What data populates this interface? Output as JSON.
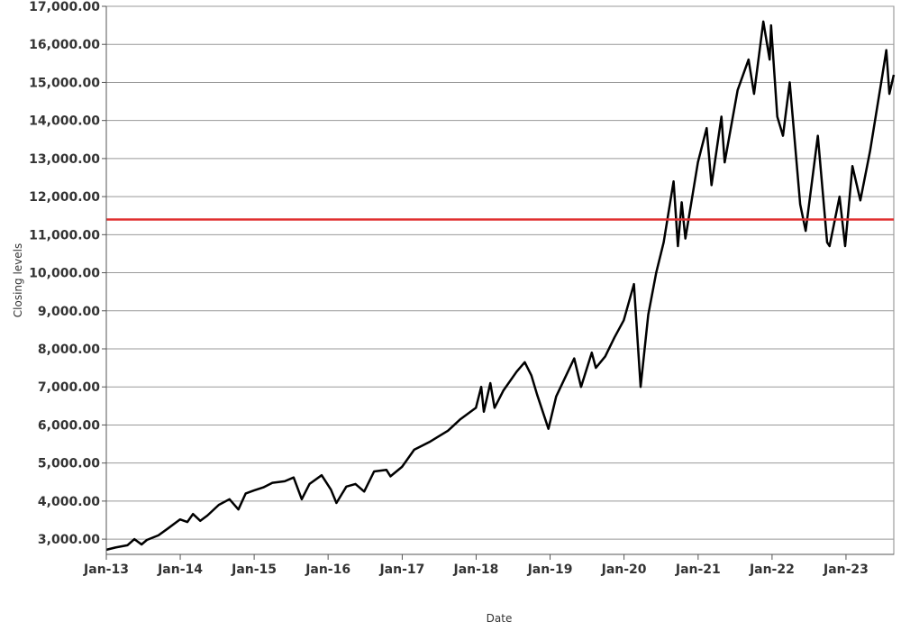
{
  "chart_data": {
    "type": "line",
    "title": "",
    "xlabel": "Date",
    "ylabel": "Closing levels",
    "xlim": [
      "2013-01-01",
      "2023-08-25"
    ],
    "ylim": [
      2600,
      17000
    ],
    "y_ticks": [
      3000,
      4000,
      5000,
      6000,
      7000,
      8000,
      9000,
      10000,
      11000,
      12000,
      13000,
      14000,
      15000,
      16000,
      17000
    ],
    "y_tick_labels": [
      "3,000.00",
      "4,000.00",
      "5,000.00",
      "6,000.00",
      "7,000.00",
      "8,000.00",
      "9,000.00",
      "10,000.00",
      "11,000.00",
      "12,000.00",
      "13,000.00",
      "14,000.00",
      "15,000.00",
      "16,000.00",
      "17,000.00"
    ],
    "x_ticks": [
      "2013-01-01",
      "2014-01-01",
      "2015-01-01",
      "2016-01-01",
      "2017-01-01",
      "2018-01-01",
      "2019-01-01",
      "2020-01-01",
      "2021-01-01",
      "2022-01-01",
      "2023-01-01"
    ],
    "x_tick_labels": [
      "Jan-13",
      "Jan-14",
      "Jan-15",
      "Jan-16",
      "Jan-17",
      "Jan-18",
      "Jan-19",
      "Jan-20",
      "Jan-21",
      "Jan-22",
      "Jan-23"
    ],
    "grid": "horizontal",
    "reference_line": {
      "y": 11400,
      "color": "#e03030"
    },
    "series": [
      {
        "color": "#000000",
        "points": [
          [
            "2013-01-01",
            2720
          ],
          [
            "2013-02-15",
            2780
          ],
          [
            "2013-04-15",
            2840
          ],
          [
            "2013-05-20",
            3000
          ],
          [
            "2013-06-24",
            2860
          ],
          [
            "2013-07-20",
            2980
          ],
          [
            "2013-09-15",
            3100
          ],
          [
            "2013-11-01",
            3280
          ],
          [
            "2013-12-31",
            3520
          ],
          [
            "2014-02-05",
            3450
          ],
          [
            "2014-03-05",
            3660
          ],
          [
            "2014-04-10",
            3480
          ],
          [
            "2014-05-15",
            3620
          ],
          [
            "2014-07-10",
            3900
          ],
          [
            "2014-09-01",
            4050
          ],
          [
            "2014-10-15",
            3780
          ],
          [
            "2014-11-20",
            4200
          ],
          [
            "2014-12-31",
            4280
          ],
          [
            "2015-02-15",
            4360
          ],
          [
            "2015-04-01",
            4480
          ],
          [
            "2015-06-01",
            4520
          ],
          [
            "2015-07-15",
            4620
          ],
          [
            "2015-08-24",
            4050
          ],
          [
            "2015-10-01",
            4450
          ],
          [
            "2015-11-30",
            4680
          ],
          [
            "2016-01-15",
            4300
          ],
          [
            "2016-02-11",
            3950
          ],
          [
            "2016-03-31",
            4380
          ],
          [
            "2016-05-15",
            4450
          ],
          [
            "2016-06-27",
            4250
          ],
          [
            "2016-08-15",
            4780
          ],
          [
            "2016-10-15",
            4820
          ],
          [
            "2016-11-04",
            4650
          ],
          [
            "2016-12-31",
            4900
          ],
          [
            "2017-03-01",
            5350
          ],
          [
            "2017-05-15",
            5550
          ],
          [
            "2017-06-30",
            5700
          ],
          [
            "2017-08-15",
            5850
          ],
          [
            "2017-10-15",
            6150
          ],
          [
            "2017-12-31",
            6450
          ],
          [
            "2018-01-26",
            7000
          ],
          [
            "2018-02-08",
            6350
          ],
          [
            "2018-03-12",
            7100
          ],
          [
            "2018-04-02",
            6450
          ],
          [
            "2018-05-15",
            6900
          ],
          [
            "2018-07-20",
            7400
          ],
          [
            "2018-08-29",
            7650
          ],
          [
            "2018-10-01",
            7300
          ],
          [
            "2018-10-29",
            6800
          ],
          [
            "2018-12-24",
            5900
          ],
          [
            "2019-01-31",
            6750
          ],
          [
            "2019-04-30",
            7750
          ],
          [
            "2019-06-03",
            7000
          ],
          [
            "2019-07-26",
            7900
          ],
          [
            "2019-08-15",
            7500
          ],
          [
            "2019-09-30",
            7800
          ],
          [
            "2019-11-15",
            8300
          ],
          [
            "2019-12-31",
            8750
          ],
          [
            "2020-02-19",
            9700
          ],
          [
            "2020-03-23",
            7000
          ],
          [
            "2020-04-30",
            8900
          ],
          [
            "2020-06-08",
            10000
          ],
          [
            "2020-07-15",
            10800
          ],
          [
            "2020-09-02",
            12400
          ],
          [
            "2020-09-23",
            10700
          ],
          [
            "2020-10-12",
            11850
          ],
          [
            "2020-10-30",
            10900
          ],
          [
            "2020-12-31",
            12900
          ],
          [
            "2021-02-12",
            13800
          ],
          [
            "2021-03-08",
            12300
          ],
          [
            "2021-04-26",
            14100
          ],
          [
            "2021-05-12",
            12900
          ],
          [
            "2021-07-15",
            14800
          ],
          [
            "2021-09-07",
            15600
          ],
          [
            "2021-10-04",
            14700
          ],
          [
            "2021-11-19",
            16600
          ],
          [
            "2021-12-20",
            15600
          ],
          [
            "2021-12-27",
            16500
          ],
          [
            "2022-01-27",
            14100
          ],
          [
            "2022-02-24",
            13600
          ],
          [
            "2022-03-29",
            15000
          ],
          [
            "2022-05-20",
            11800
          ],
          [
            "2022-06-16",
            11100
          ],
          [
            "2022-08-15",
            13600
          ],
          [
            "2022-09-30",
            10800
          ],
          [
            "2022-10-12",
            10700
          ],
          [
            "2022-11-30",
            12000
          ],
          [
            "2022-12-28",
            10700
          ],
          [
            "2023-02-02",
            12800
          ],
          [
            "2023-03-13",
            11900
          ],
          [
            "2023-04-30",
            13200
          ],
          [
            "2023-06-30",
            15200
          ],
          [
            "2023-07-19",
            15850
          ],
          [
            "2023-08-03",
            14700
          ],
          [
            "2023-08-25",
            15200
          ]
        ]
      }
    ]
  }
}
